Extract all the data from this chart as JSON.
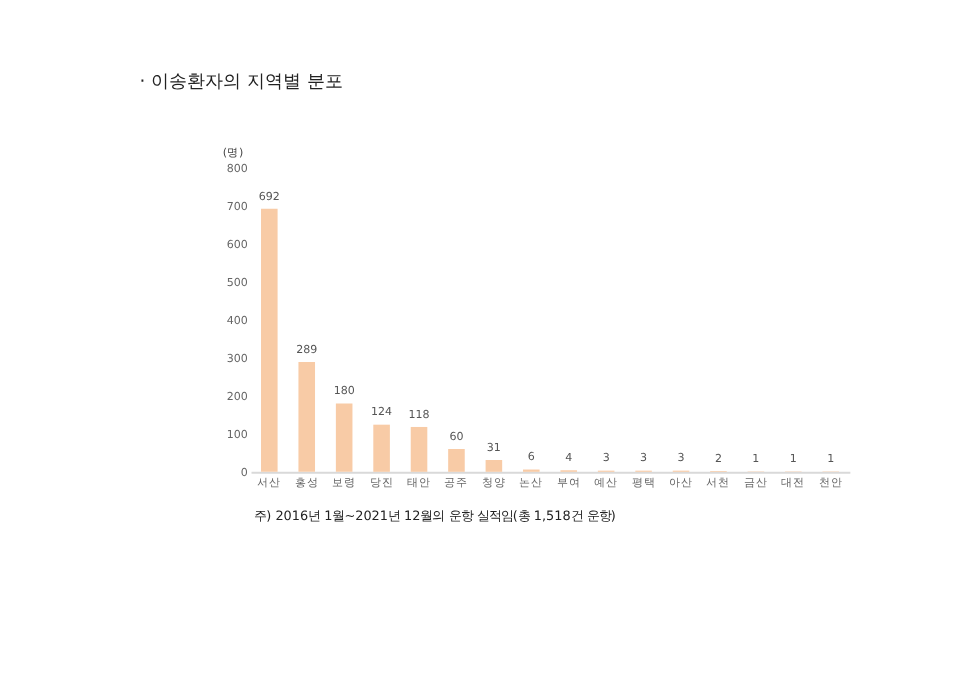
{
  "chart_data": {
    "type": "bar",
    "title": "· 이송환자의 지역별 분포",
    "ylabel": "(명)",
    "categories": [
      "서산",
      "홍성",
      "보령",
      "당진",
      "태안",
      "공주",
      "청양",
      "논산",
      "부여",
      "예산",
      "평택",
      "아산",
      "서천",
      "금산",
      "대전",
      "천안"
    ],
    "values": [
      692,
      289,
      180,
      124,
      118,
      60,
      31,
      6,
      4,
      3,
      3,
      3,
      2,
      1,
      1,
      1
    ],
    "color": "#f8cba6",
    "ylim": [
      0,
      800
    ],
    "yticks": [
      0,
      100,
      200,
      300,
      400,
      500,
      600,
      700,
      800
    ],
    "grid": false,
    "data_labels": true,
    "annotations": [
      "주) 2016년 1월~2021년 12월의 운항 실적임(총 1,518건 운항)"
    ]
  }
}
